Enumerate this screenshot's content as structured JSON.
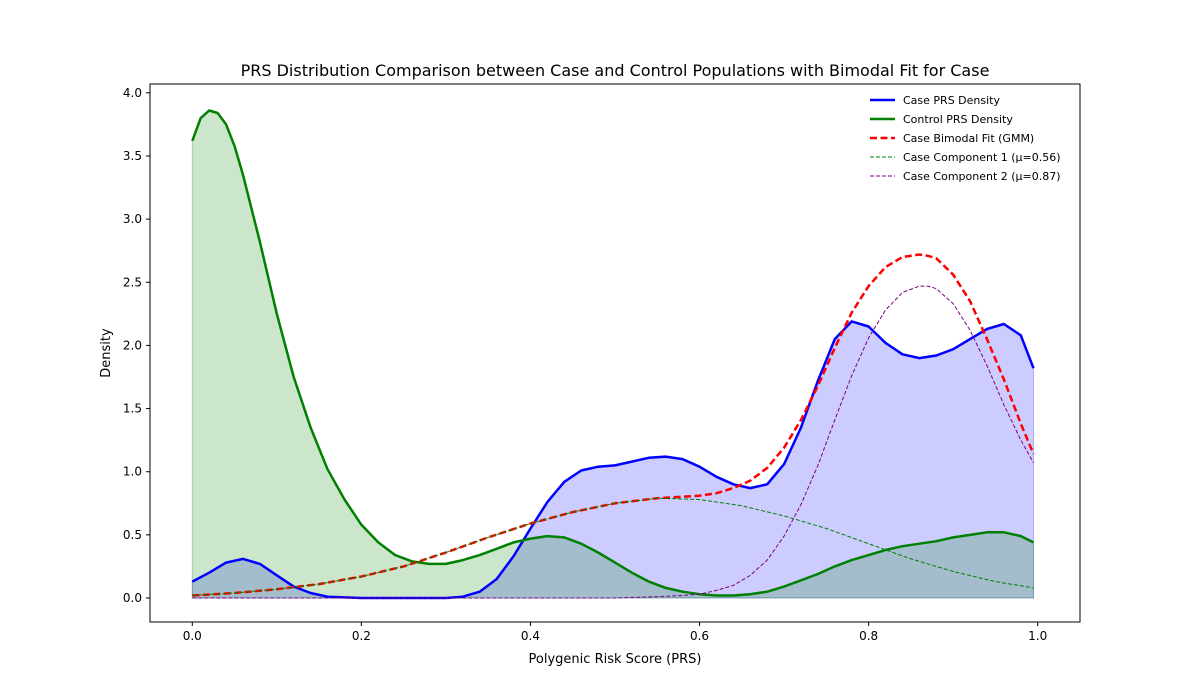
{
  "chart_data": {
    "type": "line",
    "title": "PRS Distribution Comparison between Case and Control Populations with Bimodal Fit for Case",
    "xlabel": "Polygenic Risk Score (PRS)",
    "ylabel": "Density",
    "xlim": [
      -0.05,
      1.05
    ],
    "ylim": [
      -0.19,
      4.07
    ],
    "xticks": [
      0.0,
      0.2,
      0.4,
      0.6,
      0.8,
      1.0
    ],
    "xtick_labels": [
      "0.0",
      "0.2",
      "0.4",
      "0.6",
      "0.8",
      "1.0"
    ],
    "yticks": [
      0.0,
      0.5,
      1.0,
      1.5,
      2.0,
      2.5,
      3.0,
      3.5,
      4.0
    ],
    "ytick_labels": [
      "0.0",
      "0.5",
      "1.0",
      "1.5",
      "2.0",
      "2.5",
      "3.0",
      "3.5",
      "4.0"
    ],
    "grid": false,
    "legend_position": "top-right",
    "series": [
      {
        "name": "Case PRS Density",
        "style": "solid",
        "color": "#0000ff",
        "filled": true,
        "fill_color": "#0000ff",
        "fill_opacity": 0.2,
        "x": [
          0.0,
          0.02,
          0.04,
          0.06,
          0.08,
          0.1,
          0.12,
          0.14,
          0.16,
          0.2,
          0.25,
          0.3,
          0.32,
          0.34,
          0.36,
          0.38,
          0.4,
          0.42,
          0.44,
          0.46,
          0.48,
          0.5,
          0.52,
          0.54,
          0.56,
          0.58,
          0.6,
          0.62,
          0.64,
          0.66,
          0.68,
          0.7,
          0.72,
          0.74,
          0.76,
          0.78,
          0.8,
          0.82,
          0.84,
          0.86,
          0.88,
          0.9,
          0.92,
          0.94,
          0.96,
          0.98,
          0.995
        ],
        "y": [
          0.13,
          0.2,
          0.28,
          0.31,
          0.27,
          0.18,
          0.09,
          0.04,
          0.01,
          0.0,
          0.0,
          0.0,
          0.01,
          0.05,
          0.15,
          0.33,
          0.55,
          0.76,
          0.92,
          1.01,
          1.04,
          1.05,
          1.08,
          1.11,
          1.12,
          1.1,
          1.04,
          0.96,
          0.9,
          0.87,
          0.9,
          1.06,
          1.35,
          1.72,
          2.05,
          2.19,
          2.15,
          2.02,
          1.93,
          1.9,
          1.92,
          1.97,
          2.05,
          2.13,
          2.17,
          2.08,
          1.82
        ]
      },
      {
        "name": "Control PRS Density",
        "style": "solid",
        "color": "#008000",
        "filled": true,
        "fill_color": "#008000",
        "fill_opacity": 0.2,
        "x": [
          0.0,
          0.01,
          0.02,
          0.03,
          0.04,
          0.05,
          0.06,
          0.08,
          0.1,
          0.12,
          0.14,
          0.16,
          0.18,
          0.2,
          0.22,
          0.24,
          0.26,
          0.28,
          0.3,
          0.32,
          0.34,
          0.36,
          0.38,
          0.4,
          0.42,
          0.44,
          0.46,
          0.48,
          0.5,
          0.52,
          0.54,
          0.56,
          0.58,
          0.6,
          0.62,
          0.64,
          0.66,
          0.68,
          0.7,
          0.72,
          0.74,
          0.76,
          0.78,
          0.8,
          0.82,
          0.84,
          0.86,
          0.88,
          0.9,
          0.92,
          0.94,
          0.96,
          0.98,
          0.995
        ],
        "y": [
          3.62,
          3.8,
          3.86,
          3.84,
          3.75,
          3.58,
          3.35,
          2.82,
          2.25,
          1.75,
          1.35,
          1.02,
          0.78,
          0.58,
          0.44,
          0.34,
          0.29,
          0.27,
          0.27,
          0.3,
          0.34,
          0.39,
          0.44,
          0.47,
          0.49,
          0.48,
          0.43,
          0.36,
          0.28,
          0.2,
          0.13,
          0.08,
          0.05,
          0.03,
          0.02,
          0.02,
          0.03,
          0.05,
          0.09,
          0.14,
          0.19,
          0.25,
          0.3,
          0.34,
          0.38,
          0.41,
          0.43,
          0.45,
          0.48,
          0.5,
          0.52,
          0.52,
          0.49,
          0.44
        ]
      },
      {
        "name": "Case Bimodal Fit (GMM)",
        "style": "dashed",
        "color": "#ff0000",
        "filled": false,
        "x": [
          0.0,
          0.05,
          0.1,
          0.15,
          0.2,
          0.25,
          0.3,
          0.35,
          0.4,
          0.45,
          0.5,
          0.55,
          0.6,
          0.62,
          0.64,
          0.66,
          0.68,
          0.7,
          0.72,
          0.74,
          0.76,
          0.78,
          0.8,
          0.82,
          0.84,
          0.86,
          0.87,
          0.88,
          0.9,
          0.92,
          0.94,
          0.96,
          0.98,
          0.995
        ],
        "y": [
          0.02,
          0.04,
          0.07,
          0.11,
          0.17,
          0.25,
          0.36,
          0.48,
          0.59,
          0.68,
          0.75,
          0.79,
          0.81,
          0.83,
          0.87,
          0.93,
          1.03,
          1.19,
          1.41,
          1.68,
          1.98,
          2.26,
          2.47,
          2.62,
          2.7,
          2.72,
          2.71,
          2.69,
          2.56,
          2.35,
          2.05,
          1.73,
          1.38,
          1.14
        ]
      },
      {
        "name": "Case Component 1 (μ=0.56)",
        "style": "dashed",
        "color": "#008000",
        "filled": false,
        "x": [
          0.0,
          0.05,
          0.1,
          0.15,
          0.2,
          0.25,
          0.3,
          0.35,
          0.4,
          0.45,
          0.5,
          0.55,
          0.6,
          0.65,
          0.7,
          0.75,
          0.8,
          0.85,
          0.9,
          0.95,
          0.995
        ],
        "y": [
          0.02,
          0.04,
          0.07,
          0.11,
          0.17,
          0.25,
          0.36,
          0.48,
          0.59,
          0.68,
          0.75,
          0.79,
          0.78,
          0.73,
          0.65,
          0.55,
          0.43,
          0.31,
          0.21,
          0.13,
          0.08
        ]
      },
      {
        "name": "Case Component 2 (μ=0.87)",
        "style": "dashed",
        "color": "#800080",
        "filled": false,
        "x": [
          0.0,
          0.4,
          0.5,
          0.55,
          0.58,
          0.6,
          0.62,
          0.64,
          0.66,
          0.68,
          0.7,
          0.72,
          0.74,
          0.76,
          0.78,
          0.8,
          0.82,
          0.84,
          0.86,
          0.87,
          0.88,
          0.9,
          0.92,
          0.94,
          0.96,
          0.98,
          0.995
        ],
        "y": [
          0.0,
          0.0,
          0.0,
          0.01,
          0.02,
          0.03,
          0.06,
          0.1,
          0.18,
          0.3,
          0.49,
          0.74,
          1.05,
          1.41,
          1.76,
          2.06,
          2.28,
          2.42,
          2.47,
          2.47,
          2.45,
          2.33,
          2.12,
          1.84,
          1.53,
          1.25,
          1.07
        ]
      }
    ]
  }
}
